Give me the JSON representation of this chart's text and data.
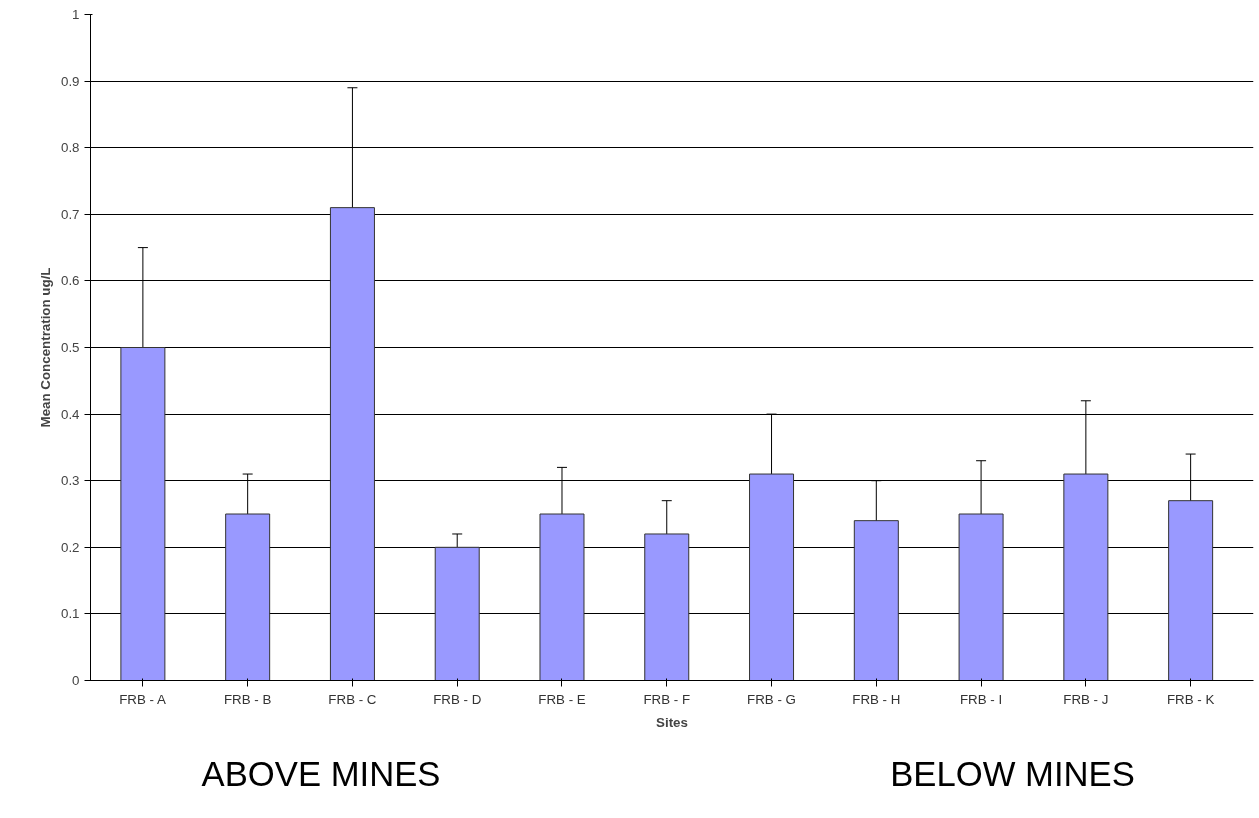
{
  "chart_data": {
    "type": "bar",
    "xlabel": "Sites",
    "ylabel": "Mean Concentration ug/L",
    "categories": [
      "FRB - A",
      "FRB - B",
      "FRB - C",
      "FRB - D",
      "FRB - E",
      "FRB - F",
      "FRB - G",
      "FRB - H",
      "FRB - I",
      "FRB - J",
      "FRB - K"
    ],
    "values": [
      0.5,
      0.25,
      0.71,
      0.2,
      0.25,
      0.22,
      0.31,
      0.24,
      0.25,
      0.31,
      0.27
    ],
    "errors": [
      0.15,
      0.06,
      0.18,
      0.02,
      0.07,
      0.05,
      0.09,
      0.06,
      0.08,
      0.11,
      0.07
    ],
    "color": "#9999ff",
    "ylim": [
      0,
      1
    ],
    "yticks": [
      0,
      0.1,
      0.2,
      0.3,
      0.4,
      0.5,
      0.6,
      0.7,
      0.8,
      0.9,
      1
    ],
    "grid": "y",
    "annotations": [
      "ABOVE MINES",
      "BELOW MINES"
    ]
  }
}
